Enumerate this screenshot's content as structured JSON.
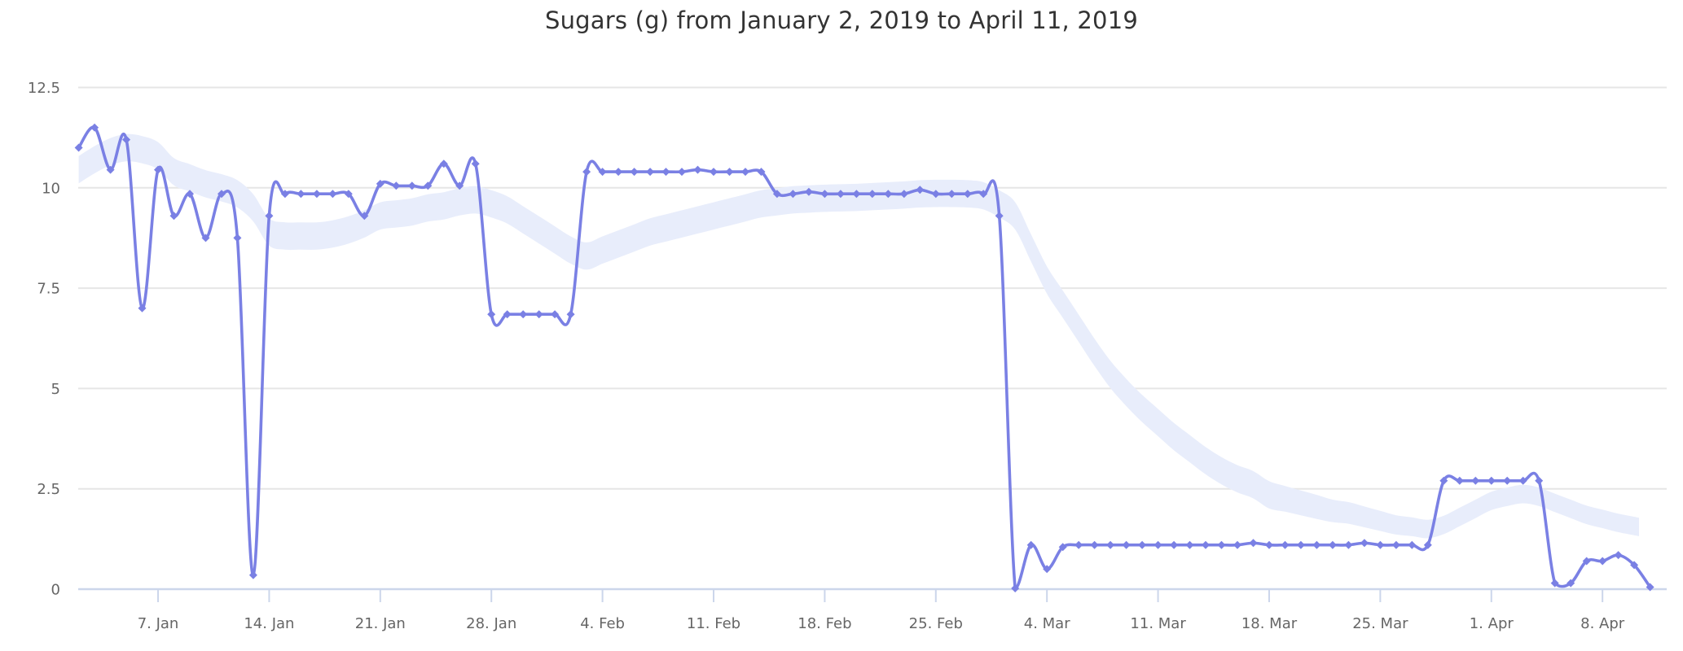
{
  "chart": {
    "colors": {
      "series": "#7A80E4",
      "band": "#E8EDFB",
      "grid": "#E6E6E6",
      "axis_line": "#CCD6EB",
      "title_text": "#333333",
      "label_text": "#666666",
      "background": "#FFFFFF"
    }
  },
  "chart_data": {
    "type": "line",
    "title": "Sugars (g) from January 2, 2019 to April 11, 2019",
    "xlabel": "",
    "ylabel": "",
    "grid": true,
    "legend": false,
    "ylim": [
      0,
      12.5
    ],
    "y_ticks": {
      "labels": [
        "0",
        "2.5",
        "5",
        "7.5",
        "10",
        "12.5"
      ],
      "values": [
        0,
        2.5,
        5,
        7.5,
        10,
        12.5
      ]
    },
    "x_ticks": {
      "labels": [
        "7. Jan",
        "14. Jan",
        "21. Jan",
        "28. Jan",
        "4. Feb",
        "11. Feb",
        "18. Feb",
        "25. Feb",
        "4. Mar",
        "11. Mar",
        "18. Mar",
        "25. Mar",
        "1. Apr",
        "8. Apr"
      ],
      "days": [
        5,
        12,
        19,
        26,
        33,
        40,
        47,
        54,
        61,
        68,
        75,
        82,
        89,
        96
      ]
    },
    "start_date": "2019-01-02",
    "end_date": "2019-04-11",
    "series": [
      {
        "name": "Sugars (g)",
        "marker": "diamond",
        "interval": "daily",
        "values": [
          11.0,
          11.5,
          10.45,
          11.2,
          7.0,
          10.45,
          9.3,
          9.85,
          8.75,
          9.85,
          8.75,
          0.35,
          9.3,
          9.85,
          9.85,
          9.85,
          9.85,
          9.85,
          9.3,
          10.1,
          10.05,
          10.05,
          10.05,
          10.6,
          10.05,
          10.6,
          6.85,
          6.85,
          6.85,
          6.85,
          6.85,
          6.85,
          10.4,
          10.4,
          10.4,
          10.4,
          10.4,
          10.4,
          10.4,
          10.45,
          10.4,
          10.4,
          10.4,
          10.4,
          9.85,
          9.85,
          9.9,
          9.85,
          9.85,
          9.85,
          9.85,
          9.85,
          9.85,
          9.95,
          9.85,
          9.85,
          9.85,
          9.85,
          9.3,
          0.02,
          1.1,
          0.5,
          1.05,
          1.1,
          1.1,
          1.1,
          1.1,
          1.1,
          1.1,
          1.1,
          1.1,
          1.1,
          1.1,
          1.1,
          1.15,
          1.1,
          1.1,
          1.1,
          1.1,
          1.1,
          1.1,
          1.15,
          1.1,
          1.1,
          1.1,
          1.1,
          2.7,
          2.7,
          2.7,
          2.7,
          2.7,
          2.7,
          2.7,
          0.15,
          0.15,
          0.7,
          0.7,
          0.85,
          0.6,
          0.05
        ]
      }
    ],
    "trend_band": {
      "style": "area-range",
      "points_day_low_high": [
        [
          0,
          10.11,
          10.79
        ],
        [
          1,
          10.36,
          11.04
        ],
        [
          2,
          10.56,
          11.24
        ],
        [
          3,
          10.66,
          11.34
        ],
        [
          4,
          10.61,
          11.29
        ],
        [
          5,
          10.46,
          11.14
        ],
        [
          6,
          10.06,
          10.74
        ],
        [
          7,
          9.91,
          10.59
        ],
        [
          8,
          9.76,
          10.44
        ],
        [
          9,
          9.66,
          10.34
        ],
        [
          10,
          9.51,
          10.19
        ],
        [
          11,
          9.16,
          9.84
        ],
        [
          12,
          8.56,
          9.24
        ],
        [
          13,
          8.46,
          9.14
        ],
        [
          14,
          8.46,
          9.14
        ],
        [
          15,
          8.46,
          9.14
        ],
        [
          16,
          8.51,
          9.19
        ],
        [
          17,
          8.61,
          9.29
        ],
        [
          18,
          8.76,
          9.44
        ],
        [
          19,
          8.96,
          9.64
        ],
        [
          20,
          9.01,
          9.69
        ],
        [
          21,
          9.06,
          9.74
        ],
        [
          22,
          9.16,
          9.84
        ],
        [
          23,
          9.21,
          9.89
        ],
        [
          24,
          9.31,
          9.99
        ],
        [
          25,
          9.36,
          10.04
        ],
        [
          26,
          9.26,
          9.94
        ],
        [
          27,
          9.11,
          9.79
        ],
        [
          28,
          8.86,
          9.54
        ],
        [
          29,
          8.61,
          9.29
        ],
        [
          30,
          8.36,
          9.04
        ],
        [
          31,
          8.11,
          8.79
        ],
        [
          32,
          7.96,
          8.64
        ],
        [
          33,
          8.11,
          8.79
        ],
        [
          34,
          8.26,
          8.94
        ],
        [
          35,
          8.41,
          9.09
        ],
        [
          36,
          8.56,
          9.24
        ],
        [
          37,
          8.66,
          9.34
        ],
        [
          38,
          8.76,
          9.44
        ],
        [
          39,
          8.86,
          9.54
        ],
        [
          40,
          8.96,
          9.64
        ],
        [
          41,
          9.06,
          9.74
        ],
        [
          42,
          9.16,
          9.84
        ],
        [
          43,
          9.26,
          9.94
        ],
        [
          44,
          9.31,
          9.99
        ],
        [
          45,
          9.36,
          10.04
        ],
        [
          46,
          9.38,
          10.06
        ],
        [
          47,
          9.4,
          10.08
        ],
        [
          48,
          9.41,
          10.09
        ],
        [
          49,
          9.42,
          10.1
        ],
        [
          50,
          9.44,
          10.12
        ],
        [
          51,
          9.46,
          10.14
        ],
        [
          52,
          9.48,
          10.16
        ],
        [
          53,
          9.51,
          10.19
        ],
        [
          54,
          9.52,
          10.2
        ],
        [
          55,
          9.52,
          10.2
        ],
        [
          56,
          9.51,
          10.19
        ],
        [
          57,
          9.46,
          10.14
        ],
        [
          58,
          9.26,
          9.94
        ],
        [
          59,
          8.96,
          9.64
        ],
        [
          60,
          8.16,
          8.84
        ],
        [
          61,
          7.36,
          8.04
        ],
        [
          62,
          6.76,
          7.44
        ],
        [
          63,
          6.16,
          6.84
        ],
        [
          64,
          5.56,
          6.24
        ],
        [
          65,
          5.01,
          5.69
        ],
        [
          66,
          4.56,
          5.24
        ],
        [
          67,
          4.16,
          4.84
        ],
        [
          68,
          3.81,
          4.49
        ],
        [
          69,
          3.46,
          4.14
        ],
        [
          70,
          3.16,
          3.84
        ],
        [
          71,
          2.86,
          3.54
        ],
        [
          72,
          2.61,
          3.29
        ],
        [
          73,
          2.41,
          3.09
        ],
        [
          74,
          2.26,
          2.94
        ],
        [
          75,
          2.01,
          2.69
        ],
        [
          76,
          1.93,
          2.57
        ],
        [
          77,
          1.84,
          2.46
        ],
        [
          78,
          1.75,
          2.35
        ],
        [
          79,
          1.67,
          2.23
        ],
        [
          80,
          1.63,
          2.17
        ],
        [
          81,
          1.54,
          2.06
        ],
        [
          82,
          1.45,
          1.95
        ],
        [
          83,
          1.36,
          1.84
        ],
        [
          84,
          1.32,
          1.79
        ],
        [
          85,
          1.27,
          1.73
        ],
        [
          86,
          1.37,
          1.83
        ],
        [
          87,
          1.57,
          2.03
        ],
        [
          88,
          1.77,
          2.23
        ],
        [
          89,
          1.97,
          2.43
        ],
        [
          90,
          2.07,
          2.53
        ],
        [
          91,
          2.14,
          2.6
        ],
        [
          92,
          2.07,
          2.53
        ],
        [
          93,
          1.92,
          2.38
        ],
        [
          94,
          1.77,
          2.23
        ],
        [
          95,
          1.62,
          2.08
        ],
        [
          96,
          1.52,
          1.98
        ],
        [
          97,
          1.42,
          1.88
        ],
        [
          98.3,
          1.32,
          1.78
        ]
      ]
    }
  }
}
